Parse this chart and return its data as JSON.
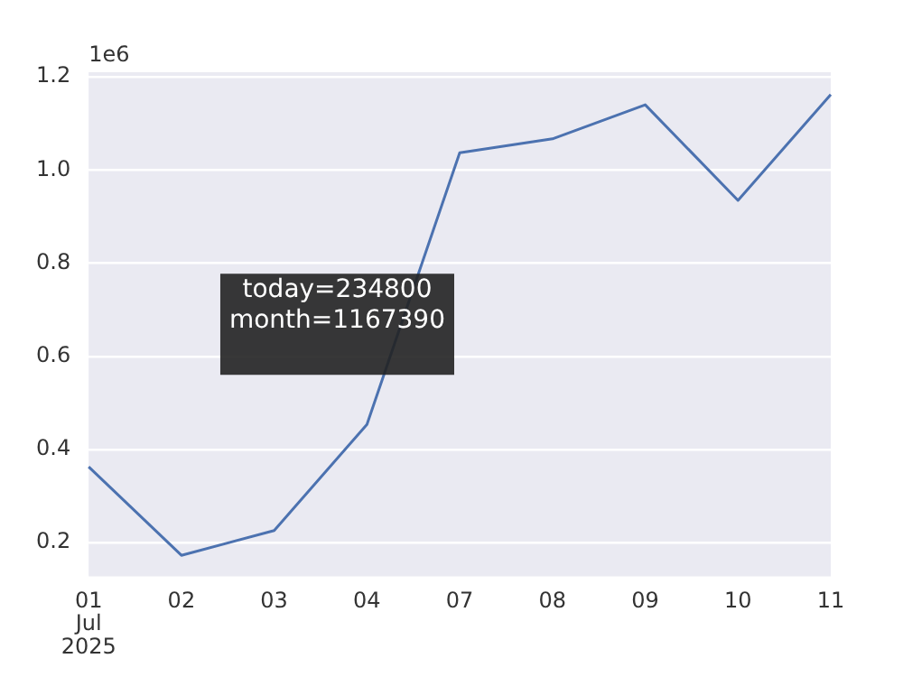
{
  "chart_data": {
    "type": "line",
    "categories": [
      "01\nJul\n2025",
      "02",
      "03",
      "04",
      "07",
      "08",
      "09",
      "10",
      "11"
    ],
    "series": [
      {
        "color": "#4c72b0",
        "values": [
          0.363,
          0.173,
          0.226,
          0.454,
          1.037,
          1.067,
          1.14,
          0.935,
          1.162
        ]
      }
    ],
    "ylim": [
      0.128,
      1.21
    ],
    "yticks": [
      {
        "value": 0.2,
        "label": "0.2"
      },
      {
        "value": 0.4,
        "label": "0.4"
      },
      {
        "value": 0.6,
        "label": "0.6"
      },
      {
        "value": 0.8,
        "label": "0.8"
      },
      {
        "value": 1,
        "label": "1.0"
      },
      {
        "value": 1.2,
        "label": "1.2"
      }
    ],
    "grid": "y",
    "legend": false,
    "annotations": [
      "1e6",
      "today=234800\nmonth=1167390"
    ]
  }
}
